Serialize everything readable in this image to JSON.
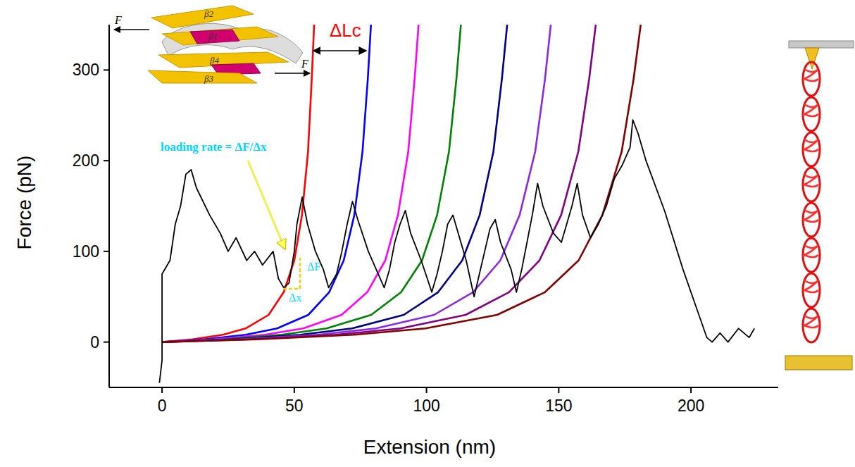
{
  "chart_data": {
    "type": "line",
    "x_label": "Extension (nm)",
    "y_label": "Force (pN)",
    "xlim": [
      -20,
      233
    ],
    "ylim": [
      -50,
      350
    ],
    "xticks": [
      0,
      50,
      100,
      150,
      200
    ],
    "yticks": [
      0,
      100,
      200,
      300
    ],
    "grid": false,
    "annotations": [
      "ΔLc",
      "loading rate = ΔF/Δx",
      "ΔF",
      "Δx"
    ],
    "inset_labels": [
      "β2",
      "β1",
      "β4",
      "β3",
      "F"
    ],
    "series": [
      {
        "color": "#000000",
        "line_style": "solid",
        "x": [
          -1,
          0,
          0,
          3,
          5,
          7,
          9,
          11,
          13,
          18,
          22,
          25,
          28,
          32,
          35,
          38,
          42,
          44,
          46,
          48,
          50,
          51,
          53,
          55,
          58,
          61,
          63,
          66,
          68,
          70,
          72,
          74,
          78,
          81,
          84,
          86,
          88,
          90,
          92,
          94,
          98,
          102,
          104,
          106,
          108,
          110,
          112,
          115,
          118,
          120,
          122,
          124,
          126,
          128,
          132,
          134,
          136,
          138,
          140,
          142,
          144,
          148,
          151,
          153,
          155,
          157,
          159,
          162,
          165,
          168,
          171,
          174,
          177,
          178,
          180,
          183,
          190,
          197,
          203,
          206,
          208,
          211,
          214,
          218,
          222,
          224
        ],
        "values": [
          -45,
          -20,
          75,
          90,
          130,
          150,
          185,
          190,
          170,
          140,
          120,
          100,
          115,
          90,
          100,
          85,
          100,
          70,
          60,
          65,
          100,
          130,
          160,
          130,
          100,
          80,
          60,
          75,
          100,
          130,
          155,
          135,
          100,
          80,
          60,
          80,
          110,
          130,
          145,
          120,
          90,
          55,
          75,
          100,
          130,
          140,
          120,
          90,
          50,
          75,
          100,
          125,
          135,
          110,
          80,
          55,
          80,
          110,
          140,
          175,
          150,
          120,
          110,
          130,
          150,
          175,
          140,
          115,
          130,
          150,
          180,
          195,
          215,
          245,
          230,
          200,
          145,
          80,
          30,
          5,
          0,
          10,
          0,
          15,
          5,
          15
        ]
      },
      {
        "color": "#ff0000",
        "line_style": "solid",
        "x": [
          0,
          11.5,
          23,
          31.6,
          40.3,
          46,
          50,
          52.9,
          55.2,
          56.6,
          57.5
        ],
        "values": [
          0,
          3,
          8,
          15,
          30,
          55,
          90,
          140,
          210,
          290,
          350
        ]
      },
      {
        "color": "#0000ff",
        "line_style": "solid",
        "x": [
          0,
          15.8,
          31.6,
          43.5,
          55.3,
          63.2,
          68.7,
          72.7,
          75.8,
          77.8,
          79
        ],
        "values": [
          0,
          3,
          8,
          15,
          30,
          55,
          90,
          140,
          210,
          290,
          350
        ]
      },
      {
        "color": "#ff00ff",
        "line_style": "solid",
        "x": [
          0,
          19.4,
          38.8,
          53.4,
          67.9,
          77.6,
          84.4,
          89.2,
          93.1,
          95.5,
          97
        ],
        "values": [
          0,
          3,
          8,
          15,
          30,
          55,
          90,
          140,
          210,
          290,
          350
        ]
      },
      {
        "color": "#008000",
        "line_style": "solid",
        "x": [
          0,
          22.6,
          45.2,
          62.2,
          79.1,
          90.4,
          98.3,
          104,
          108.5,
          111.3,
          113
        ],
        "values": [
          0,
          3,
          8,
          15,
          30,
          55,
          90,
          140,
          210,
          290,
          350
        ]
      },
      {
        "color": "#000080",
        "line_style": "solid",
        "x": [
          0,
          26.1,
          52.2,
          71.8,
          91.4,
          104.4,
          113.5,
          120.1,
          125.3,
          128.5,
          130.5
        ],
        "values": [
          0,
          3,
          8,
          15,
          30,
          55,
          90,
          140,
          210,
          290,
          350
        ]
      },
      {
        "color": "#8a2be2",
        "line_style": "solid",
        "x": [
          0,
          29.4,
          58.8,
          80.9,
          102.9,
          117.6,
          127.9,
          135.2,
          141.1,
          144.8,
          147
        ],
        "values": [
          0,
          3,
          8,
          15,
          30,
          55,
          90,
          140,
          210,
          290,
          350
        ]
      },
      {
        "color": "#800080",
        "line_style": "solid",
        "x": [
          0,
          32.8,
          65.6,
          90.2,
          114.8,
          131.2,
          142.7,
          150.9,
          157.4,
          161.5,
          164
        ],
        "values": [
          0,
          3,
          8,
          15,
          30,
          55,
          90,
          140,
          210,
          290,
          350
        ]
      },
      {
        "color": "#800000",
        "line_style": "solid",
        "x": [
          0,
          36.2,
          72.4,
          99.6,
          126.7,
          144.8,
          157.5,
          166.5,
          173.8,
          178.3,
          181
        ],
        "values": [
          0,
          3,
          8,
          15,
          30,
          55,
          90,
          140,
          210,
          290,
          350
        ]
      }
    ]
  }
}
